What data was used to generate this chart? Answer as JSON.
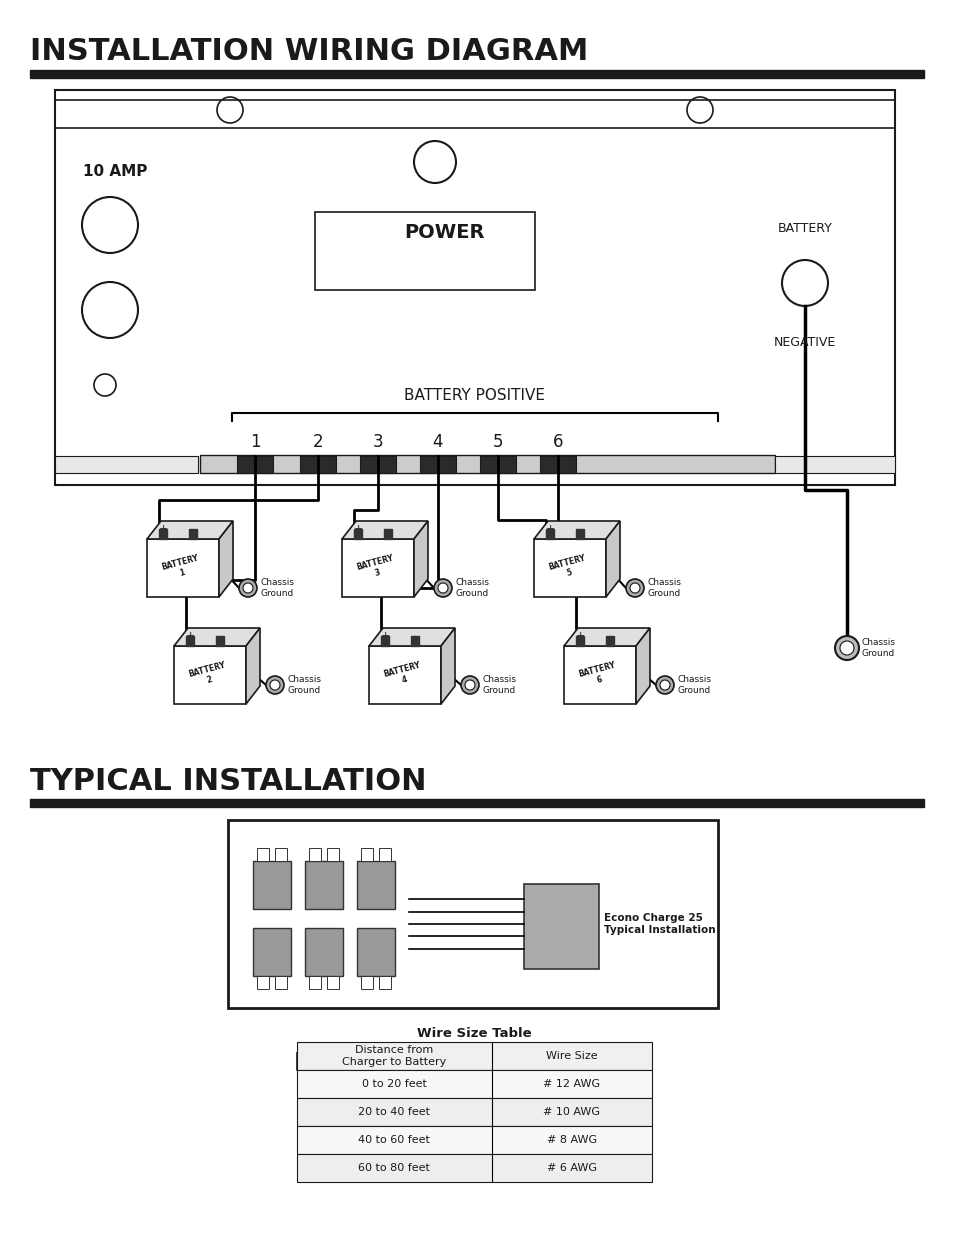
{
  "title1": "INSTALLATION WIRING DIAGRAM",
  "title2": "TYPICAL INSTALLATION",
  "bg_color": "#ffffff",
  "text_color": "#1a1a1a",
  "panel_label_10amp": "10 AMP",
  "panel_label_power": "POWER",
  "panel_label_battery": "BATTERY",
  "panel_label_negative": "NEGATIVE",
  "battery_positive_label": "BATTERY POSITIVE",
  "terminal_numbers": [
    "1",
    "2",
    "3",
    "4",
    "5",
    "6"
  ],
  "chassis_ground_label": "Chassis\nGround",
  "wire_size_title": "Wire Size Table",
  "wire_size_col1_header": "Distance from\nCharger to Battery",
  "wire_size_col2_header": "Wire Size",
  "wire_size_rows": [
    [
      "0 to 20 feet",
      "# 12 AWG"
    ],
    [
      "20 to 40 feet",
      "# 10 AWG"
    ],
    [
      "40 to 60 feet",
      "# 8 AWG"
    ],
    [
      "60 to 80 feet",
      "# 6 AWG"
    ]
  ],
  "econo_charge_label": "Econo Charge 25\nTypical Installation"
}
